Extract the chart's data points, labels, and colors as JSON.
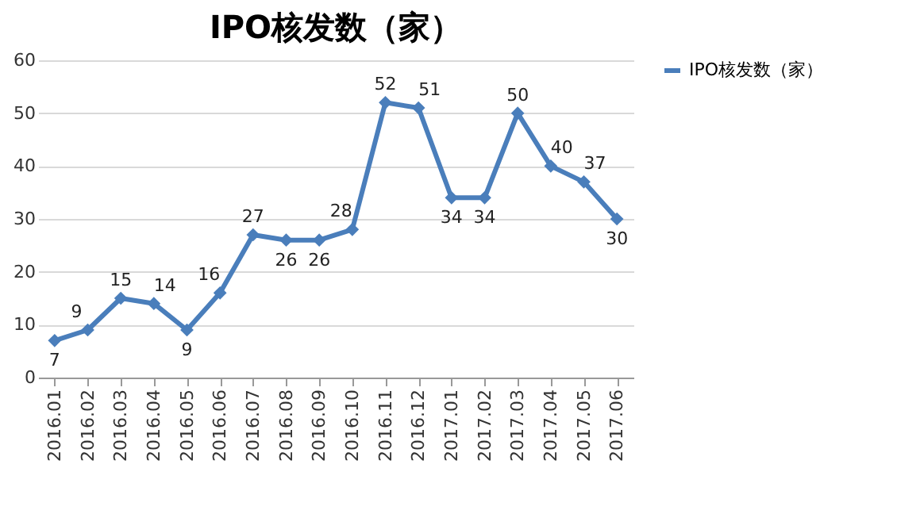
{
  "chart_data": {
    "type": "line",
    "title": "IPO核发数（家）",
    "categories": [
      "2016.01",
      "2016.02",
      "2016.03",
      "2016.04",
      "2016.05",
      "2016.06",
      "2016.07",
      "2016.08",
      "2016.09",
      "2016.10",
      "2016.11",
      "2016.12",
      "2017.01",
      "2017.02",
      "2017.03",
      "2017.04",
      "2017.05",
      "2017.06"
    ],
    "series": [
      {
        "name": "IPO核发数（家）",
        "color": "#4a7ebb",
        "values": [
          7,
          9,
          15,
          14,
          9,
          16,
          27,
          26,
          26,
          28,
          52,
          51,
          34,
          34,
          50,
          40,
          37,
          30
        ]
      }
    ],
    "ylim": [
      0,
      60
    ],
    "yticks": [
      0,
      10,
      20,
      30,
      40,
      50,
      60
    ],
    "grid": "y",
    "legend": "right",
    "marker": "diamond",
    "line_style": "solid",
    "data_labels": true
  }
}
